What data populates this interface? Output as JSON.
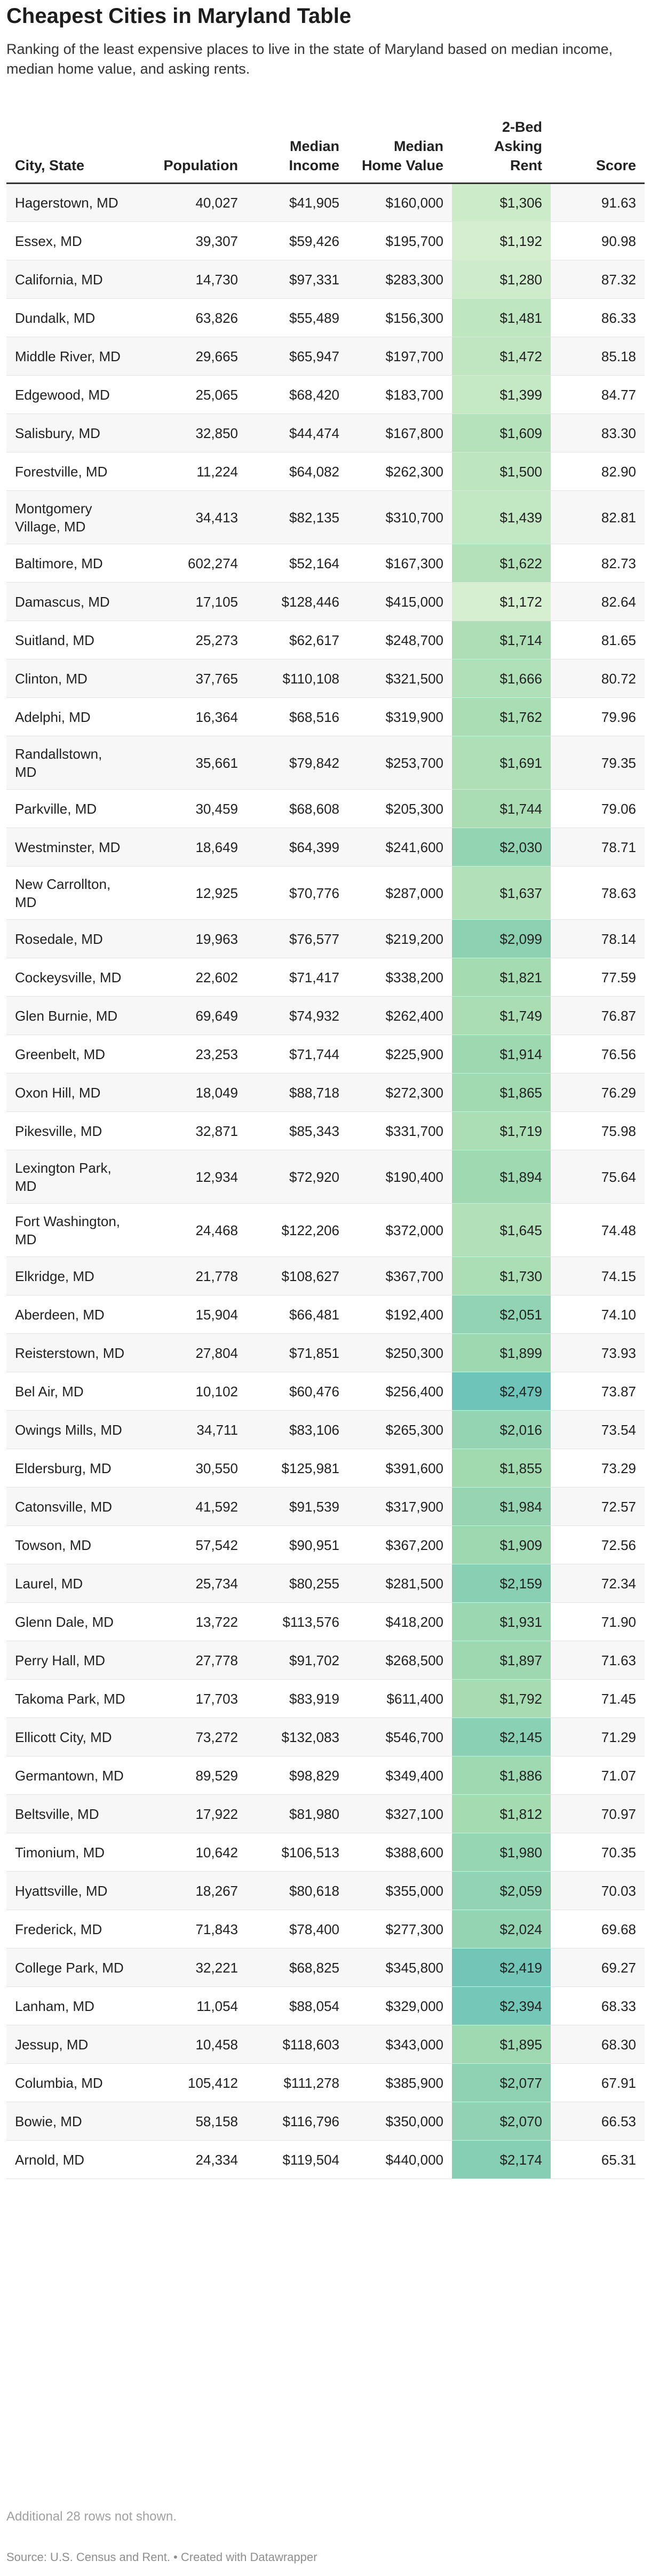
{
  "title": "Cheapest Cities in Maryland Table",
  "subtitle": "Ranking of the least expensive places to live in the state of Maryland based on median income, median home value, and asking rents.",
  "note": "Additional 28 rows not shown.",
  "source": "Source: U.S. Census and Rent. • Created with Datawrapper",
  "colors": {
    "rent_low": "#d6efd0",
    "rent_mid": "#a4dbb0",
    "rent_high": "#6ec4b8",
    "header_rule": "#333333",
    "row_stripe": "#f7f7f7"
  },
  "chart_data": {
    "type": "table",
    "columns": [
      "City, State",
      "Population",
      "Median Income",
      "Median Home Value",
      "2-Bed Asking Rent",
      "Score"
    ],
    "heat_column": "2-Bed Asking Rent",
    "rows": [
      {
        "city": "Hagerstown, MD",
        "population": "40,027",
        "income": "$41,905",
        "home": "$160,000",
        "rent": "$1,306",
        "rent_value": 1306,
        "score": "91.63"
      },
      {
        "city": "Essex, MD",
        "population": "39,307",
        "income": "$59,426",
        "home": "$195,700",
        "rent": "$1,192",
        "rent_value": 1192,
        "score": "90.98"
      },
      {
        "city": "California, MD",
        "population": "14,730",
        "income": "$97,331",
        "home": "$283,300",
        "rent": "$1,280",
        "rent_value": 1280,
        "score": "87.32"
      },
      {
        "city": "Dundalk, MD",
        "population": "63,826",
        "income": "$55,489",
        "home": "$156,300",
        "rent": "$1,481",
        "rent_value": 1481,
        "score": "86.33"
      },
      {
        "city": "Middle River, MD",
        "population": "29,665",
        "income": "$65,947",
        "home": "$197,700",
        "rent": "$1,472",
        "rent_value": 1472,
        "score": "85.18"
      },
      {
        "city": "Edgewood, MD",
        "population": "25,065",
        "income": "$68,420",
        "home": "$183,700",
        "rent": "$1,399",
        "rent_value": 1399,
        "score": "84.77"
      },
      {
        "city": "Salisbury, MD",
        "population": "32,850",
        "income": "$44,474",
        "home": "$167,800",
        "rent": "$1,609",
        "rent_value": 1609,
        "score": "83.30"
      },
      {
        "city": "Forestville, MD",
        "population": "11,224",
        "income": "$64,082",
        "home": "$262,300",
        "rent": "$1,500",
        "rent_value": 1500,
        "score": "82.90"
      },
      {
        "city": "Montgomery Village, MD",
        "population": "34,413",
        "income": "$82,135",
        "home": "$310,700",
        "rent": "$1,439",
        "rent_value": 1439,
        "score": "82.81"
      },
      {
        "city": "Baltimore, MD",
        "population": "602,274",
        "income": "$52,164",
        "home": "$167,300",
        "rent": "$1,622",
        "rent_value": 1622,
        "score": "82.73"
      },
      {
        "city": "Damascus, MD",
        "population": "17,105",
        "income": "$128,446",
        "home": "$415,000",
        "rent": "$1,172",
        "rent_value": 1172,
        "score": "82.64"
      },
      {
        "city": "Suitland, MD",
        "population": "25,273",
        "income": "$62,617",
        "home": "$248,700",
        "rent": "$1,714",
        "rent_value": 1714,
        "score": "81.65"
      },
      {
        "city": "Clinton, MD",
        "population": "37,765",
        "income": "$110,108",
        "home": "$321,500",
        "rent": "$1,666",
        "rent_value": 1666,
        "score": "80.72"
      },
      {
        "city": "Adelphi, MD",
        "population": "16,364",
        "income": "$68,516",
        "home": "$319,900",
        "rent": "$1,762",
        "rent_value": 1762,
        "score": "79.96"
      },
      {
        "city": "Randallstown, MD",
        "population": "35,661",
        "income": "$79,842",
        "home": "$253,700",
        "rent": "$1,691",
        "rent_value": 1691,
        "score": "79.35"
      },
      {
        "city": "Parkville, MD",
        "population": "30,459",
        "income": "$68,608",
        "home": "$205,300",
        "rent": "$1,744",
        "rent_value": 1744,
        "score": "79.06"
      },
      {
        "city": "Westminster, MD",
        "population": "18,649",
        "income": "$64,399",
        "home": "$241,600",
        "rent": "$2,030",
        "rent_value": 2030,
        "score": "78.71"
      },
      {
        "city": "New Carrollton, MD",
        "population": "12,925",
        "income": "$70,776",
        "home": "$287,000",
        "rent": "$1,637",
        "rent_value": 1637,
        "score": "78.63"
      },
      {
        "city": "Rosedale, MD",
        "population": "19,963",
        "income": "$76,577",
        "home": "$219,200",
        "rent": "$2,099",
        "rent_value": 2099,
        "score": "78.14"
      },
      {
        "city": "Cockeysville, MD",
        "population": "22,602",
        "income": "$71,417",
        "home": "$338,200",
        "rent": "$1,821",
        "rent_value": 1821,
        "score": "77.59"
      },
      {
        "city": "Glen Burnie, MD",
        "population": "69,649",
        "income": "$74,932",
        "home": "$262,400",
        "rent": "$1,749",
        "rent_value": 1749,
        "score": "76.87"
      },
      {
        "city": "Greenbelt, MD",
        "population": "23,253",
        "income": "$71,744",
        "home": "$225,900",
        "rent": "$1,914",
        "rent_value": 1914,
        "score": "76.56"
      },
      {
        "city": "Oxon Hill, MD",
        "population": "18,049",
        "income": "$88,718",
        "home": "$272,300",
        "rent": "$1,865",
        "rent_value": 1865,
        "score": "76.29"
      },
      {
        "city": "Pikesville, MD",
        "population": "32,871",
        "income": "$85,343",
        "home": "$331,700",
        "rent": "$1,719",
        "rent_value": 1719,
        "score": "75.98"
      },
      {
        "city": "Lexington Park, MD",
        "population": "12,934",
        "income": "$72,920",
        "home": "$190,400",
        "rent": "$1,894",
        "rent_value": 1894,
        "score": "75.64"
      },
      {
        "city": "Fort Washington, MD",
        "population": "24,468",
        "income": "$122,206",
        "home": "$372,000",
        "rent": "$1,645",
        "rent_value": 1645,
        "score": "74.48"
      },
      {
        "city": "Elkridge, MD",
        "population": "21,778",
        "income": "$108,627",
        "home": "$367,700",
        "rent": "$1,730",
        "rent_value": 1730,
        "score": "74.15"
      },
      {
        "city": "Aberdeen, MD",
        "population": "15,904",
        "income": "$66,481",
        "home": "$192,400",
        "rent": "$2,051",
        "rent_value": 2051,
        "score": "74.10"
      },
      {
        "city": "Reisterstown, MD",
        "population": "27,804",
        "income": "$71,851",
        "home": "$250,300",
        "rent": "$1,899",
        "rent_value": 1899,
        "score": "73.93"
      },
      {
        "city": "Bel Air, MD",
        "population": "10,102",
        "income": "$60,476",
        "home": "$256,400",
        "rent": "$2,479",
        "rent_value": 2479,
        "score": "73.87"
      },
      {
        "city": "Owings Mills, MD",
        "population": "34,711",
        "income": "$83,106",
        "home": "$265,300",
        "rent": "$2,016",
        "rent_value": 2016,
        "score": "73.54"
      },
      {
        "city": "Eldersburg, MD",
        "population": "30,550",
        "income": "$125,981",
        "home": "$391,600",
        "rent": "$1,855",
        "rent_value": 1855,
        "score": "73.29"
      },
      {
        "city": "Catonsville, MD",
        "population": "41,592",
        "income": "$91,539",
        "home": "$317,900",
        "rent": "$1,984",
        "rent_value": 1984,
        "score": "72.57"
      },
      {
        "city": "Towson, MD",
        "population": "57,542",
        "income": "$90,951",
        "home": "$367,200",
        "rent": "$1,909",
        "rent_value": 1909,
        "score": "72.56"
      },
      {
        "city": "Laurel, MD",
        "population": "25,734",
        "income": "$80,255",
        "home": "$281,500",
        "rent": "$2,159",
        "rent_value": 2159,
        "score": "72.34"
      },
      {
        "city": "Glenn Dale, MD",
        "population": "13,722",
        "income": "$113,576",
        "home": "$418,200",
        "rent": "$1,931",
        "rent_value": 1931,
        "score": "71.90"
      },
      {
        "city": "Perry Hall, MD",
        "population": "27,778",
        "income": "$91,702",
        "home": "$268,500",
        "rent": "$1,897",
        "rent_value": 1897,
        "score": "71.63"
      },
      {
        "city": "Takoma Park, MD",
        "population": "17,703",
        "income": "$83,919",
        "home": "$611,400",
        "rent": "$1,792",
        "rent_value": 1792,
        "score": "71.45"
      },
      {
        "city": "Ellicott City, MD",
        "population": "73,272",
        "income": "$132,083",
        "home": "$546,700",
        "rent": "$2,145",
        "rent_value": 2145,
        "score": "71.29"
      },
      {
        "city": "Germantown, MD",
        "population": "89,529",
        "income": "$98,829",
        "home": "$349,400",
        "rent": "$1,886",
        "rent_value": 1886,
        "score": "71.07"
      },
      {
        "city": "Beltsville, MD",
        "population": "17,922",
        "income": "$81,980",
        "home": "$327,100",
        "rent": "$1,812",
        "rent_value": 1812,
        "score": "70.97"
      },
      {
        "city": "Timonium, MD",
        "population": "10,642",
        "income": "$106,513",
        "home": "$388,600",
        "rent": "$1,980",
        "rent_value": 1980,
        "score": "70.35"
      },
      {
        "city": "Hyattsville, MD",
        "population": "18,267",
        "income": "$80,618",
        "home": "$355,000",
        "rent": "$2,059",
        "rent_value": 2059,
        "score": "70.03"
      },
      {
        "city": "Frederick, MD",
        "population": "71,843",
        "income": "$78,400",
        "home": "$277,300",
        "rent": "$2,024",
        "rent_value": 2024,
        "score": "69.68"
      },
      {
        "city": "College Park, MD",
        "population": "32,221",
        "income": "$68,825",
        "home": "$345,800",
        "rent": "$2,419",
        "rent_value": 2419,
        "score": "69.27"
      },
      {
        "city": "Lanham, MD",
        "population": "11,054",
        "income": "$88,054",
        "home": "$329,000",
        "rent": "$2,394",
        "rent_value": 2394,
        "score": "68.33"
      },
      {
        "city": "Jessup, MD",
        "population": "10,458",
        "income": "$118,603",
        "home": "$343,000",
        "rent": "$1,895",
        "rent_value": 1895,
        "score": "68.30"
      },
      {
        "city": "Columbia, MD",
        "population": "105,412",
        "income": "$111,278",
        "home": "$385,900",
        "rent": "$2,077",
        "rent_value": 2077,
        "score": "67.91"
      },
      {
        "city": "Bowie, MD",
        "population": "58,158",
        "income": "$116,796",
        "home": "$350,000",
        "rent": "$2,070",
        "rent_value": 2070,
        "score": "66.53"
      },
      {
        "city": "Arnold, MD",
        "population": "24,334",
        "income": "$119,504",
        "home": "$440,000",
        "rent": "$2,174",
        "rent_value": 2174,
        "score": "65.31"
      }
    ]
  }
}
